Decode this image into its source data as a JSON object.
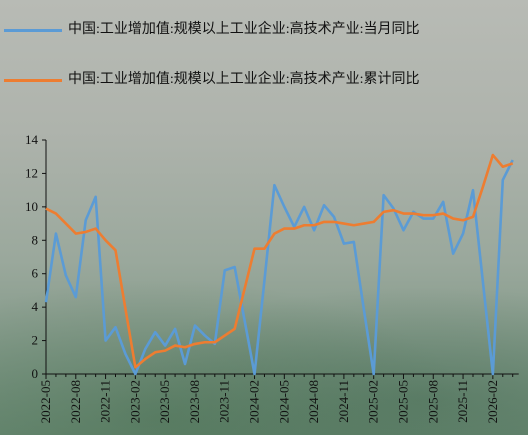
{
  "chart_data": {
    "type": "line",
    "categories": [
      "2022-05",
      null,
      null,
      "2022-08",
      null,
      null,
      "2022-11",
      null,
      null,
      "2023-02",
      null,
      null,
      "2023-05",
      null,
      null,
      "2023-08",
      null,
      null,
      "2023-11",
      null,
      null,
      "2024-02",
      null,
      null,
      "2024-05",
      null,
      null,
      "2024-08",
      null,
      null,
      "2024-11",
      null,
      null,
      "2025-02",
      null,
      null,
      "2025-05",
      null,
      null,
      "2025-08",
      null,
      null,
      "2025-11",
      null,
      null,
      "2026-02",
      null,
      null
    ],
    "series": [
      {
        "name": "中国:工业增加值:规模以上工业企业:高技术产业:当月同比",
        "color": "#5b9bd5",
        "values": [
          4.3,
          8.4,
          5.9,
          4.6,
          9.2,
          10.6,
          2.0,
          2.8,
          1.2,
          0,
          1.5,
          2.5,
          1.7,
          2.7,
          0.6,
          2.9,
          2.3,
          1.8,
          6.2,
          6.4,
          3.2,
          0,
          5.6,
          11.3,
          10.0,
          8.8,
          10.0,
          8.6,
          10.1,
          9.4,
          7.8,
          7.9,
          3.9,
          0,
          10.7,
          9.9,
          8.6,
          9.7,
          9.3,
          9.3,
          10.3,
          7.2,
          8.4,
          11.0,
          5.5,
          0,
          11.6,
          12.8
        ]
      },
      {
        "name": "中国:工业增加值:规模以上工业企业:高技术产业:累计同比",
        "color": "#ed7d31",
        "values": [
          9.9,
          9.6,
          9.0,
          8.4,
          8.5,
          8.7,
          8.0,
          7.4,
          3.9,
          0.4,
          0.9,
          1.3,
          1.4,
          1.7,
          1.6,
          1.8,
          1.9,
          1.9,
          2.3,
          2.7,
          5.1,
          7.5,
          7.5,
          8.4,
          8.7,
          8.7,
          8.9,
          8.9,
          9.1,
          9.1,
          9.0,
          8.9,
          9.0,
          9.1,
          9.7,
          9.8,
          9.6,
          9.6,
          9.5,
          9.5,
          9.6,
          9.3,
          9.2,
          9.4,
          11.2,
          13.1,
          12.4,
          12.6
        ]
      }
    ],
    "ylim": [
      0,
      14
    ],
    "yticks": [
      0,
      2,
      4,
      6,
      8,
      10,
      12,
      14
    ]
  }
}
